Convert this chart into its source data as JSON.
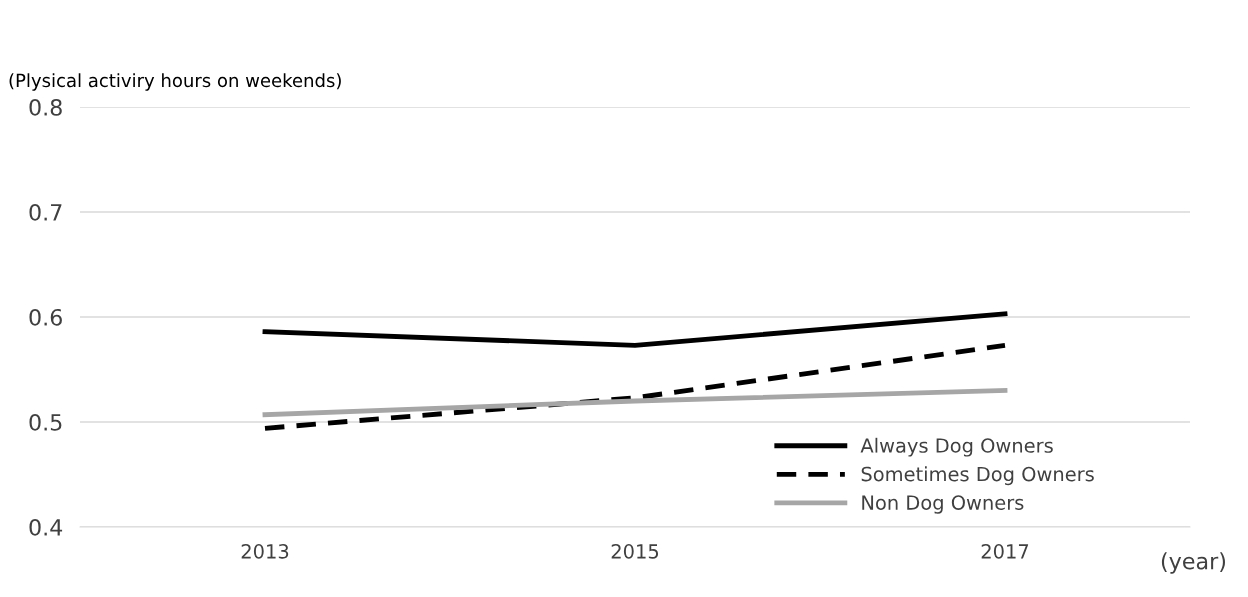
{
  "chart_data": {
    "type": "line",
    "ylabel": "(Plysical activiry hours on weekends)",
    "xlabel": "(year)",
    "categories": [
      "2013",
      "2015",
      "2017"
    ],
    "series": [
      {
        "name": "Always Dog Owners",
        "color": "#000000",
        "line_style": "solid",
        "values": [
          0.586,
          0.573,
          0.603
        ]
      },
      {
        "name": "Sometimes Dog Owners",
        "color": "#000000",
        "line_style": "dashed",
        "values": [
          0.494,
          0.523,
          0.573
        ]
      },
      {
        "name": "Non Dog Owners",
        "color": "#a6a6a6",
        "line_style": "solid",
        "values": [
          0.507,
          0.52,
          0.53
        ]
      }
    ],
    "ylim": [
      0.4,
      0.8
    ],
    "yticks": [
      0.4,
      0.5,
      0.6,
      0.7,
      0.8
    ],
    "grid": "y",
    "legend": "bottom right",
    "marker": "none"
  }
}
